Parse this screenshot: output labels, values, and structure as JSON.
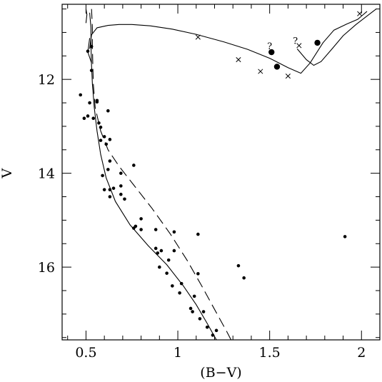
{
  "chart_data": {
    "type": "scatter",
    "xlabel": "(B−V)",
    "ylabel": "V",
    "xlim": [
      0.37,
      2.1
    ],
    "ylim": [
      17.55,
      10.4
    ],
    "x_ticks": [
      0.5,
      1,
      1.5,
      2
    ],
    "x_tick_labels": [
      "0.5",
      "1",
      "1.5",
      "2"
    ],
    "y_ticks": [
      12,
      14,
      16
    ],
    "y_tick_labels": [
      "12",
      "14",
      "16"
    ],
    "grid": false,
    "series": [
      {
        "marker": "dot",
        "points": [
          [
            0.47,
            12.33
          ],
          [
            0.49,
            12.83
          ],
          [
            0.51,
            12.78
          ],
          [
            0.52,
            12.5
          ],
          [
            0.54,
            12.83
          ],
          [
            0.56,
            12.45
          ],
          [
            0.56,
            12.48
          ],
          [
            0.57,
            12.93
          ],
          [
            0.58,
            13.02
          ],
          [
            0.58,
            13.3
          ],
          [
            0.6,
            13.22
          ],
          [
            0.61,
            13.38
          ],
          [
            0.62,
            12.67
          ],
          [
            0.63,
            13.28
          ],
          [
            0.59,
            14.05
          ],
          [
            0.6,
            14.35
          ],
          [
            0.62,
            13.92
          ],
          [
            0.63,
            14.35
          ],
          [
            0.63,
            14.5
          ],
          [
            0.63,
            13.74
          ],
          [
            0.65,
            14.32
          ],
          [
            0.69,
            14.0
          ],
          [
            0.69,
            14.27
          ],
          [
            0.69,
            14.45
          ],
          [
            0.71,
            14.55
          ],
          [
            0.76,
            13.83
          ],
          [
            0.76,
            15.17
          ],
          [
            0.77,
            15.13
          ],
          [
            0.8,
            14.97
          ],
          [
            0.8,
            15.2
          ],
          [
            0.88,
            15.2
          ],
          [
            0.88,
            15.6
          ],
          [
            0.89,
            15.7
          ],
          [
            0.9,
            16.0
          ],
          [
            0.91,
            15.65
          ],
          [
            0.94,
            16.13
          ],
          [
            0.95,
            15.85
          ],
          [
            0.97,
            16.4
          ],
          [
            0.98,
            15.25
          ],
          [
            0.98,
            15.65
          ],
          [
            1.01,
            16.55
          ],
          [
            1.02,
            16.35
          ],
          [
            1.07,
            16.88
          ],
          [
            1.08,
            16.95
          ],
          [
            1.09,
            16.62
          ],
          [
            1.11,
            16.14
          ],
          [
            1.12,
            17.1
          ],
          [
            1.14,
            16.95
          ],
          [
            1.16,
            17.28
          ],
          [
            1.19,
            17.45
          ],
          [
            1.21,
            17.35
          ],
          [
            1.11,
            15.3
          ],
          [
            1.33,
            15.97
          ],
          [
            1.36,
            16.23
          ],
          [
            1.91,
            15.35
          ],
          [
            0.53,
            11.3
          ],
          [
            0.51,
            11.4
          ],
          [
            0.53,
            11.81
          ]
        ]
      },
      {
        "marker": "large-dot",
        "points": [
          [
            1.51,
            11.42
          ],
          [
            1.54,
            11.73
          ],
          [
            1.76,
            11.22
          ]
        ]
      },
      {
        "marker": "cross",
        "points": [
          [
            1.11,
            11.1
          ],
          [
            1.33,
            11.58
          ],
          [
            1.45,
            11.83
          ],
          [
            1.6,
            11.93
          ],
          [
            1.66,
            11.28
          ],
          [
            1.99,
            10.6
          ]
        ]
      },
      {
        "marker": "question-mark",
        "points": [
          [
            1.5,
            11.3
          ],
          [
            1.64,
            11.18
          ]
        ]
      }
    ],
    "curves": [
      {
        "style": "solid",
        "points": [
          [
            0.52,
            10.58
          ],
          [
            0.527,
            10.9
          ],
          [
            0.527,
            11.15
          ],
          [
            0.528,
            11.4
          ],
          [
            0.53,
            11.7
          ],
          [
            0.535,
            12.1
          ],
          [
            0.545,
            12.6
          ],
          [
            0.56,
            13.1
          ],
          [
            0.58,
            13.6
          ],
          [
            0.61,
            14.1
          ],
          [
            0.66,
            14.6
          ],
          [
            0.74,
            15.1
          ],
          [
            0.84,
            15.55
          ],
          [
            0.94,
            15.95
          ],
          [
            1.03,
            16.4
          ],
          [
            1.1,
            16.8
          ],
          [
            1.16,
            17.2
          ],
          [
            1.21,
            17.55
          ]
        ]
      },
      {
        "style": "dashed",
        "points": [
          [
            0.53,
            10.5
          ],
          [
            0.535,
            10.9
          ],
          [
            0.535,
            11.3
          ],
          [
            0.537,
            11.7
          ],
          [
            0.54,
            12.1
          ],
          [
            0.55,
            12.6
          ],
          [
            0.58,
            13.1
          ],
          [
            0.62,
            13.5
          ],
          [
            0.68,
            13.85
          ],
          [
            0.76,
            14.25
          ],
          [
            0.86,
            14.75
          ],
          [
            0.96,
            15.3
          ],
          [
            1.05,
            15.85
          ],
          [
            1.13,
            16.4
          ],
          [
            1.2,
            16.9
          ],
          [
            1.27,
            17.4
          ],
          [
            1.29,
            17.55
          ]
        ]
      },
      {
        "style": "solid",
        "points": [
          [
            0.52,
            11.35
          ],
          [
            0.53,
            11.05
          ],
          [
            0.56,
            10.9
          ],
          [
            0.62,
            10.85
          ],
          [
            0.68,
            10.83
          ],
          [
            0.75,
            10.83
          ],
          [
            0.85,
            10.86
          ],
          [
            0.97,
            10.93
          ],
          [
            1.1,
            11.04
          ],
          [
            1.25,
            11.2
          ],
          [
            1.38,
            11.36
          ],
          [
            1.5,
            11.55
          ],
          [
            1.6,
            11.75
          ],
          [
            1.67,
            11.87
          ],
          [
            1.72,
            11.65
          ],
          [
            1.79,
            11.22
          ],
          [
            1.85,
            10.95
          ],
          [
            1.92,
            10.82
          ],
          [
            1.98,
            10.72
          ],
          [
            2.03,
            10.55
          ]
        ]
      },
      {
        "style": "solid",
        "points": [
          [
            1.65,
            11.35
          ],
          [
            1.7,
            11.58
          ],
          [
            1.74,
            11.7
          ],
          [
            1.78,
            11.62
          ],
          [
            1.84,
            11.35
          ],
          [
            1.9,
            11.07
          ],
          [
            1.97,
            10.83
          ],
          [
            2.03,
            10.65
          ],
          [
            2.08,
            10.5
          ]
        ]
      },
      {
        "style": "solid",
        "points": [
          [
            0.5,
            10.5
          ],
          [
            0.505,
            10.62
          ],
          [
            0.5,
            10.8
          ]
        ]
      },
      {
        "style": "solid",
        "points": [
          [
            0.52,
            11.12
          ],
          [
            0.51,
            11.42
          ],
          [
            0.53,
            11.65
          ]
        ]
      }
    ]
  }
}
